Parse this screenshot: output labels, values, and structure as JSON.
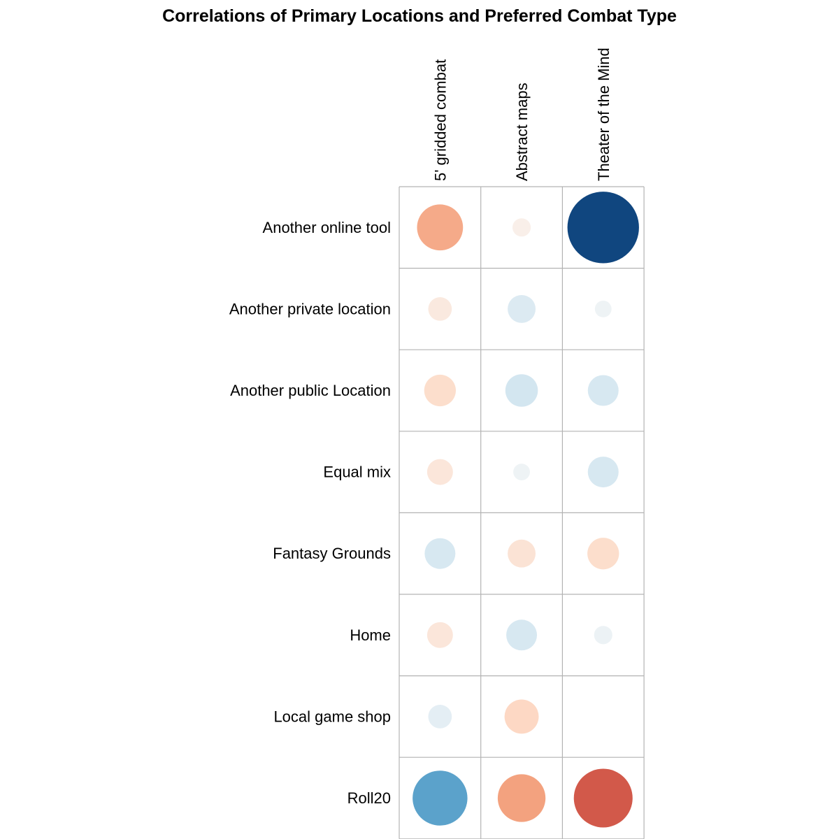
{
  "chart_data": {
    "type": "heatmap",
    "subtype": "correlation-circles",
    "title": "Correlations of Primary Locations and Preferred Combat Type",
    "xlabel": "",
    "ylabel": "",
    "columns": [
      "5' gridded combat",
      "Abstract maps",
      "Theater of the Mind"
    ],
    "rows": [
      "Another online tool",
      "Another private location",
      "Another public Location",
      "Equal mix",
      "Fantasy Grounds",
      "Home",
      "Local game shop",
      "Roll20"
    ],
    "values": [
      [
        0.38,
        0.06,
        -0.92
      ],
      [
        0.1,
        -0.14,
        -0.05
      ],
      [
        0.18,
        -0.19,
        -0.17
      ],
      [
        0.12,
        -0.05,
        -0.17
      ],
      [
        -0.17,
        0.14,
        0.18
      ],
      [
        0.12,
        -0.17,
        -0.06
      ],
      [
        -0.1,
        0.21,
        0.0
      ],
      [
        -0.54,
        0.41,
        0.62
      ]
    ],
    "color_scale": {
      "name": "RdBu",
      "range": [
        -1,
        1
      ],
      "negative": "blue",
      "positive": "red"
    },
    "grid": true,
    "legend": "none"
  }
}
